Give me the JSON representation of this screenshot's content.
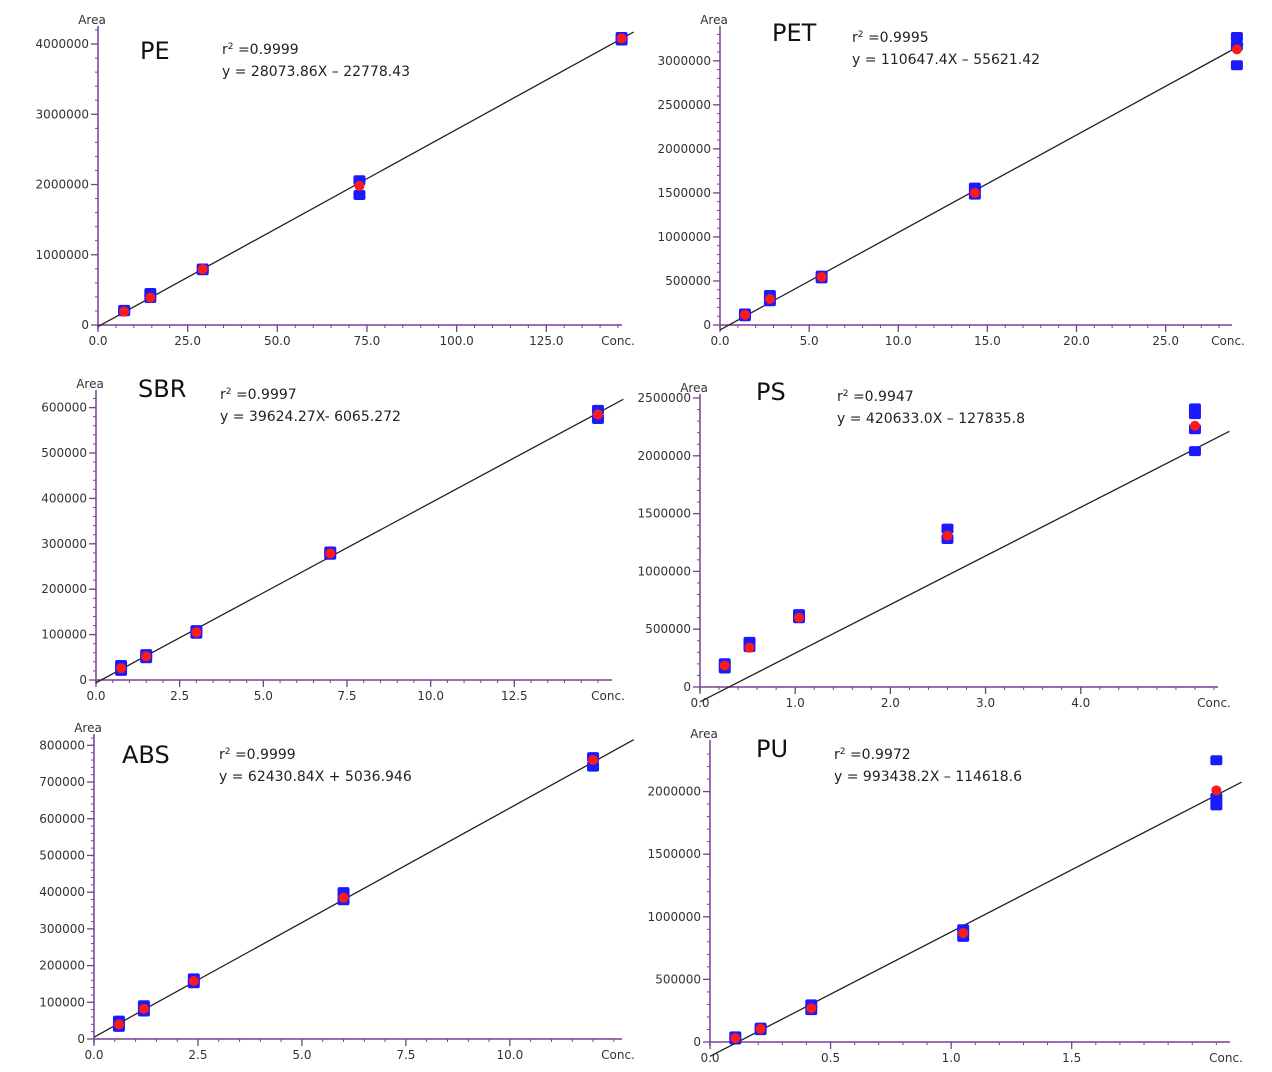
{
  "chart_data": [
    {
      "type": "scatter",
      "title": "PE",
      "r2_text": "0.9999",
      "equation": "y = 28073.86X – 22778.43",
      "ylabel": "Area",
      "xlabel": "Conc.",
      "xlim": [
        0,
        145
      ],
      "ylim": [
        0,
        4200000
      ],
      "x_ticks": [
        0,
        25,
        50,
        75,
        100,
        125
      ],
      "x_tick_labels": [
        "0.0",
        "25.0",
        "50.0",
        "75.0",
        "100.0",
        "125.0"
      ],
      "y_ticks": [
        0,
        1000000,
        2000000,
        3000000,
        4000000
      ],
      "y_tick_labels": [
        "0",
        "1000000",
        "2000000",
        "3000000",
        "4000000"
      ],
      "fit": {
        "slope": 28073.86,
        "intercept": -22778.43
      },
      "measured": [
        {
          "x": 7.3,
          "y": 215000
        },
        {
          "x": 7.3,
          "y": 195000
        },
        {
          "x": 14.6,
          "y": 455000
        },
        {
          "x": 14.6,
          "y": 385000
        },
        {
          "x": 29.2,
          "y": 805000
        },
        {
          "x": 29.2,
          "y": 780000
        },
        {
          "x": 72.9,
          "y": 2060000
        },
        {
          "x": 72.9,
          "y": 1850000
        },
        {
          "x": 146.0,
          "y": 4100000
        },
        {
          "x": 146.0,
          "y": 4050000
        }
      ],
      "mean": [
        {
          "x": 7.3,
          "y": 190000
        },
        {
          "x": 14.6,
          "y": 390000
        },
        {
          "x": 29.2,
          "y": 795000
        },
        {
          "x": 72.9,
          "y": 1980000
        },
        {
          "x": 146.0,
          "y": 4080000
        }
      ]
    },
    {
      "type": "scatter",
      "title": "PET",
      "r2_text": "0.9995",
      "equation": "y = 110647.4X – 55621.42",
      "ylabel": "Area",
      "xlabel": "Conc.",
      "xlim": [
        0,
        28.5
      ],
      "ylim": [
        0,
        3350000
      ],
      "x_ticks": [
        0,
        5,
        10,
        15,
        20,
        25
      ],
      "x_tick_labels": [
        "0.0",
        "5.0",
        "10.0",
        "15.0",
        "20.0",
        "25.0"
      ],
      "y_ticks": [
        0,
        500000,
        1000000,
        1500000,
        2000000,
        2500000,
        3000000
      ],
      "y_tick_labels": [
        "0",
        "500000",
        "1000000",
        "1500000",
        "2000000",
        "2500000",
        "3000000"
      ],
      "fit": {
        "slope": 110647.4,
        "intercept": -55621.42
      },
      "measured": [
        {
          "x": 1.4,
          "y": 130000
        },
        {
          "x": 1.4,
          "y": 100000
        },
        {
          "x": 2.8,
          "y": 340000
        },
        {
          "x": 2.8,
          "y": 270000
        },
        {
          "x": 5.7,
          "y": 560000
        },
        {
          "x": 5.7,
          "y": 530000
        },
        {
          "x": 14.3,
          "y": 1560000
        },
        {
          "x": 14.3,
          "y": 1480000
        },
        {
          "x": 29.0,
          "y": 3270000
        },
        {
          "x": 29.0,
          "y": 3170000
        },
        {
          "x": 29.0,
          "y": 2950000
        }
      ],
      "mean": [
        {
          "x": 1.4,
          "y": 115000
        },
        {
          "x": 2.8,
          "y": 295000
        },
        {
          "x": 5.7,
          "y": 545000
        },
        {
          "x": 14.3,
          "y": 1500000
        },
        {
          "x": 29.0,
          "y": 3130000
        }
      ]
    },
    {
      "type": "scatter",
      "title": "SBR",
      "r2_text": "0.9997",
      "equation": "y = 39624.27X- 6065.272",
      "ylabel": "Area",
      "xlabel": "Conc.",
      "xlim": [
        0,
        15.3
      ],
      "ylim": [
        0,
        630000
      ],
      "x_ticks": [
        0,
        2.5,
        5,
        7.5,
        10,
        12.5
      ],
      "x_tick_labels": [
        "0.0",
        "2.5",
        "5.0",
        "7.5",
        "10.0",
        "12.5"
      ],
      "y_ticks": [
        0,
        100000,
        200000,
        300000,
        400000,
        500000,
        600000
      ],
      "y_tick_labels": [
        "0",
        "100000",
        "200000",
        "300000",
        "400000",
        "500000",
        "600000"
      ],
      "fit": {
        "slope": 39624.27,
        "intercept": -6065.272
      },
      "measured": [
        {
          "x": 0.75,
          "y": 33000
        },
        {
          "x": 0.75,
          "y": 20000
        },
        {
          "x": 1.5,
          "y": 57000
        },
        {
          "x": 1.5,
          "y": 48000
        },
        {
          "x": 3.0,
          "y": 110000
        },
        {
          "x": 3.0,
          "y": 102000
        },
        {
          "x": 7.0,
          "y": 283000
        },
        {
          "x": 7.0,
          "y": 276000
        },
        {
          "x": 15.0,
          "y": 595000
        },
        {
          "x": 15.0,
          "y": 575000
        }
      ],
      "mean": [
        {
          "x": 0.75,
          "y": 26000
        },
        {
          "x": 1.5,
          "y": 52000
        },
        {
          "x": 3.0,
          "y": 105000
        },
        {
          "x": 7.0,
          "y": 279000
        },
        {
          "x": 15.0,
          "y": 585000
        }
      ]
    },
    {
      "type": "scatter",
      "title": "PS",
      "r2_text": "0.9947",
      "equation": "y = 420633.0X – 127835.8",
      "ylabel": "Area",
      "xlabel": "Conc.",
      "xlim": [
        0,
        5.4
      ],
      "ylim": [
        0,
        2500000
      ],
      "x_ticks": [
        0,
        1,
        2,
        3,
        4
      ],
      "x_tick_labels": [
        "0.0",
        "1.0",
        "2.0",
        "3.0",
        "4.0"
      ],
      "y_ticks": [
        0,
        500000,
        1000000,
        1500000,
        2000000,
        2500000
      ],
      "y_tick_labels": [
        "0",
        "500000",
        "1000000",
        "1500000",
        "2000000",
        "2500000"
      ],
      "fit": {
        "slope": 420633.0,
        "intercept": -127835.8
      },
      "measured": [
        {
          "x": 0.26,
          "y": 205000
        },
        {
          "x": 0.26,
          "y": 160000
        },
        {
          "x": 0.52,
          "y": 390000
        },
        {
          "x": 0.52,
          "y": 345000
        },
        {
          "x": 1.04,
          "y": 630000
        },
        {
          "x": 1.04,
          "y": 595000
        },
        {
          "x": 2.6,
          "y": 1370000
        },
        {
          "x": 2.6,
          "y": 1280000
        },
        {
          "x": 5.2,
          "y": 2410000
        },
        {
          "x": 5.2,
          "y": 2360000
        },
        {
          "x": 5.2,
          "y": 2230000
        },
        {
          "x": 5.2,
          "y": 2040000
        }
      ],
      "mean": [
        {
          "x": 0.26,
          "y": 185000
        },
        {
          "x": 0.52,
          "y": 340000
        },
        {
          "x": 1.04,
          "y": 600000
        },
        {
          "x": 2.6,
          "y": 1310000
        },
        {
          "x": 5.2,
          "y": 2260000
        }
      ]
    },
    {
      "type": "scatter",
      "title": "ABS",
      "r2_text": "0.9999",
      "equation": "y = 62430.84X + 5036.946",
      "ylabel": "Area",
      "xlabel": "Conc.",
      "xlim": [
        0,
        12.6
      ],
      "ylim": [
        0,
        820000
      ],
      "x_ticks": [
        0,
        2.5,
        5,
        7.5,
        10
      ],
      "x_tick_labels": [
        "0.0",
        "2.5",
        "5.0",
        "7.5",
        "10.0"
      ],
      "y_ticks": [
        0,
        100000,
        200000,
        300000,
        400000,
        500000,
        600000,
        700000,
        800000
      ],
      "y_tick_labels": [
        "0",
        "100000",
        "200000",
        "300000",
        "400000",
        "500000",
        "600000",
        "700000",
        "800000"
      ],
      "fit": {
        "slope": 62430.84,
        "intercept": 5036.946
      },
      "measured": [
        {
          "x": 0.6,
          "y": 50000
        },
        {
          "x": 0.6,
          "y": 33000
        },
        {
          "x": 1.2,
          "y": 92000
        },
        {
          "x": 1.2,
          "y": 75000
        },
        {
          "x": 2.4,
          "y": 165000
        },
        {
          "x": 2.4,
          "y": 152000
        },
        {
          "x": 6.0,
          "y": 400000
        },
        {
          "x": 6.0,
          "y": 378000
        },
        {
          "x": 12.0,
          "y": 768000
        },
        {
          "x": 12.0,
          "y": 742000
        }
      ],
      "mean": [
        {
          "x": 0.6,
          "y": 40000
        },
        {
          "x": 1.2,
          "y": 82000
        },
        {
          "x": 2.4,
          "y": 158000
        },
        {
          "x": 6.0,
          "y": 385000
        },
        {
          "x": 12.0,
          "y": 760000
        }
      ]
    },
    {
      "type": "scatter",
      "title": "PU",
      "r2_text": "0.9972",
      "equation": "y = 993438.2X – 114618.6",
      "ylabel": "Area",
      "xlabel": "Conc.",
      "xlim": [
        0,
        2.14
      ],
      "ylim": [
        0,
        2380000
      ],
      "x_ticks": [
        0,
        0.5,
        1.0,
        1.5
      ],
      "x_tick_labels": [
        "0.0",
        "0.5",
        "1.0",
        "1.5"
      ],
      "y_ticks": [
        0,
        500000,
        1000000,
        1500000,
        2000000
      ],
      "y_tick_labels": [
        "0",
        "500000",
        "1000000",
        "1500000",
        "2000000"
      ],
      "fit": {
        "slope": 993438.2,
        "intercept": -114618.6
      },
      "measured": [
        {
          "x": 0.105,
          "y": 45000
        },
        {
          "x": 0.105,
          "y": 20000
        },
        {
          "x": 0.21,
          "y": 115000
        },
        {
          "x": 0.21,
          "y": 95000
        },
        {
          "x": 0.42,
          "y": 300000
        },
        {
          "x": 0.42,
          "y": 255000
        },
        {
          "x": 1.05,
          "y": 900000
        },
        {
          "x": 1.05,
          "y": 840000
        },
        {
          "x": 2.1,
          "y": 2250000
        },
        {
          "x": 2.1,
          "y": 1950000
        },
        {
          "x": 2.1,
          "y": 1890000
        }
      ],
      "mean": [
        {
          "x": 0.105,
          "y": 30000
        },
        {
          "x": 0.21,
          "y": 105000
        },
        {
          "x": 0.42,
          "y": 270000
        },
        {
          "x": 1.05,
          "y": 870000
        },
        {
          "x": 2.1,
          "y": 2010000
        }
      ]
    }
  ],
  "style": {
    "axis_color": "#7b3f93",
    "measured_color": "#1a1aff",
    "mean_color": "#ff1a1a",
    "fit_color": "#222222",
    "minor_ticks": true
  }
}
